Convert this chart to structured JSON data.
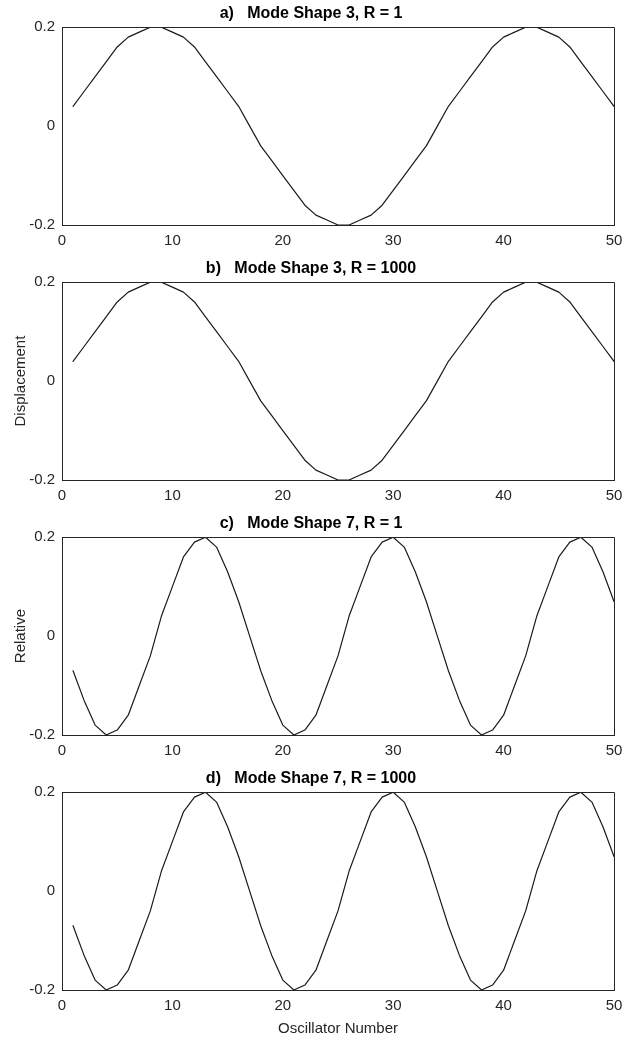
{
  "chart_data": [
    {
      "type": "line",
      "title": "a)   Mode Shape 3, R = 1",
      "x": [
        1,
        2,
        3,
        4,
        5,
        6,
        7,
        8,
        9,
        10,
        11,
        12,
        13,
        14,
        15,
        16,
        17,
        18,
        19,
        20,
        21,
        22,
        23,
        24,
        25,
        26,
        27,
        28,
        29,
        30,
        31,
        32,
        33,
        34,
        35,
        36,
        37,
        38,
        39,
        40,
        41,
        42,
        43,
        44,
        45,
        46,
        47,
        48,
        49,
        50
      ],
      "series": [
        {
          "color": "#1a1a1a",
          "values": [
            0.04,
            0.07,
            0.1,
            0.13,
            0.16,
            0.18,
            0.19,
            0.2,
            0.2,
            0.19,
            0.18,
            0.16,
            0.13,
            0.1,
            0.07,
            0.04,
            0,
            -0.04,
            -0.07,
            -0.1,
            -0.13,
            -0.16,
            -0.18,
            -0.19,
            -0.2,
            -0.2,
            -0.19,
            -0.18,
            -0.16,
            -0.13,
            -0.1,
            -0.07,
            -0.04,
            0,
            0.04,
            0.07,
            0.1,
            0.13,
            0.16,
            0.18,
            0.19,
            0.2,
            0.2,
            0.19,
            0.18,
            0.16,
            0.13,
            0.1,
            0.07,
            0.04
          ]
        }
      ],
      "xlim": [
        0,
        50
      ],
      "xticks": [
        0,
        10,
        20,
        30,
        40,
        50
      ],
      "ylim": [
        -0.2,
        0.2
      ],
      "yticks": [
        -0.2,
        0,
        0.2
      ],
      "grid": false,
      "legend": false,
      "marker": "none",
      "line_style": "solid"
    },
    {
      "type": "line",
      "title": "b)   Mode Shape 3, R = 1000",
      "ylabel": "Displacement",
      "x": [
        1,
        2,
        3,
        4,
        5,
        6,
        7,
        8,
        9,
        10,
        11,
        12,
        13,
        14,
        15,
        16,
        17,
        18,
        19,
        20,
        21,
        22,
        23,
        24,
        25,
        26,
        27,
        28,
        29,
        30,
        31,
        32,
        33,
        34,
        35,
        36,
        37,
        38,
        39,
        40,
        41,
        42,
        43,
        44,
        45,
        46,
        47,
        48,
        49,
        50
      ],
      "series": [
        {
          "color": "#1a1a1a",
          "values": [
            0.04,
            0.07,
            0.1,
            0.13,
            0.16,
            0.18,
            0.19,
            0.2,
            0.2,
            0.19,
            0.18,
            0.16,
            0.13,
            0.1,
            0.07,
            0.04,
            0,
            -0.04,
            -0.07,
            -0.1,
            -0.13,
            -0.16,
            -0.18,
            -0.19,
            -0.2,
            -0.2,
            -0.19,
            -0.18,
            -0.16,
            -0.13,
            -0.1,
            -0.07,
            -0.04,
            0,
            0.04,
            0.07,
            0.1,
            0.13,
            0.16,
            0.18,
            0.19,
            0.2,
            0.2,
            0.19,
            0.18,
            0.16,
            0.13,
            0.1,
            0.07,
            0.04
          ]
        }
      ],
      "xlim": [
        0,
        50
      ],
      "xticks": [
        0,
        10,
        20,
        30,
        40,
        50
      ],
      "ylim": [
        -0.2,
        0.2
      ],
      "yticks": [
        -0.2,
        0,
        0.2
      ],
      "grid": false,
      "legend": false,
      "marker": "none",
      "line_style": "solid"
    },
    {
      "type": "line",
      "title": "c)   Mode Shape 7, R = 1",
      "ylabel": "Relative",
      "x": [
        1,
        2,
        3,
        4,
        5,
        6,
        7,
        8,
        9,
        10,
        11,
        12,
        13,
        14,
        15,
        16,
        17,
        18,
        19,
        20,
        21,
        22,
        23,
        24,
        25,
        26,
        27,
        28,
        29,
        30,
        31,
        32,
        33,
        34,
        35,
        36,
        37,
        38,
        39,
        40,
        41,
        42,
        43,
        44,
        45,
        46,
        47,
        48,
        49,
        50
      ],
      "series": [
        {
          "color": "#1a1a1a",
          "values": [
            -0.07,
            -0.13,
            -0.18,
            -0.2,
            -0.19,
            -0.16,
            -0.1,
            -0.04,
            0.04,
            0.1,
            0.16,
            0.19,
            0.2,
            0.18,
            0.13,
            0.07,
            0,
            -0.07,
            -0.13,
            -0.18,
            -0.2,
            -0.19,
            -0.16,
            -0.1,
            -0.04,
            0.04,
            0.1,
            0.16,
            0.19,
            0.2,
            0.18,
            0.13,
            0.07,
            0,
            -0.07,
            -0.13,
            -0.18,
            -0.2,
            -0.19,
            -0.16,
            -0.1,
            -0.04,
            0.04,
            0.1,
            0.16,
            0.19,
            0.2,
            0.18,
            0.13,
            0.07
          ]
        }
      ],
      "xlim": [
        0,
        50
      ],
      "xticks": [
        0,
        10,
        20,
        30,
        40,
        50
      ],
      "ylim": [
        -0.2,
        0.2
      ],
      "yticks": [
        -0.2,
        0,
        0.2
      ],
      "grid": false,
      "legend": false,
      "marker": "none",
      "line_style": "solid"
    },
    {
      "type": "line",
      "title": "d)   Mode Shape 7, R = 1000",
      "xlabel": "Oscillator Number",
      "x": [
        1,
        2,
        3,
        4,
        5,
        6,
        7,
        8,
        9,
        10,
        11,
        12,
        13,
        14,
        15,
        16,
        17,
        18,
        19,
        20,
        21,
        22,
        23,
        24,
        25,
        26,
        27,
        28,
        29,
        30,
        31,
        32,
        33,
        34,
        35,
        36,
        37,
        38,
        39,
        40,
        41,
        42,
        43,
        44,
        45,
        46,
        47,
        48,
        49,
        50
      ],
      "series": [
        {
          "color": "#1a1a1a",
          "values": [
            -0.07,
            -0.13,
            -0.18,
            -0.2,
            -0.19,
            -0.16,
            -0.1,
            -0.04,
            0.04,
            0.1,
            0.16,
            0.19,
            0.2,
            0.18,
            0.13,
            0.07,
            0,
            -0.07,
            -0.13,
            -0.18,
            -0.2,
            -0.19,
            -0.16,
            -0.1,
            -0.04,
            0.04,
            0.1,
            0.16,
            0.19,
            0.2,
            0.18,
            0.13,
            0.07,
            0,
            -0.07,
            -0.13,
            -0.18,
            -0.2,
            -0.19,
            -0.16,
            -0.1,
            -0.04,
            0.04,
            0.1,
            0.16,
            0.19,
            0.2,
            0.18,
            0.13,
            0.07
          ]
        }
      ],
      "xlim": [
        0,
        50
      ],
      "xticks": [
        0,
        10,
        20,
        30,
        40,
        50
      ],
      "ylim": [
        -0.2,
        0.2
      ],
      "yticks": [
        -0.2,
        0,
        0.2
      ],
      "grid": false,
      "legend": false,
      "marker": "none",
      "line_style": "solid"
    }
  ]
}
